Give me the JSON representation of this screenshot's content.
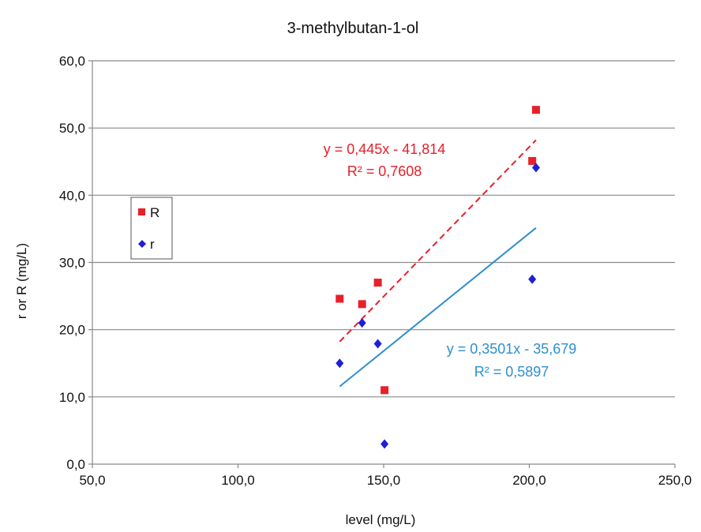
{
  "chart_data": {
    "type": "scatter",
    "title": "3-methylbutan-1-ol",
    "xlabel": "level (mg/L)",
    "ylabel": "r or R (mg/L)",
    "xlim": [
      50,
      250
    ],
    "ylim": [
      0,
      60
    ],
    "x_ticks": [
      50,
      100,
      150,
      200,
      250
    ],
    "y_ticks": [
      0,
      10,
      20,
      30,
      40,
      50,
      60
    ],
    "x_tick_labels": [
      "50,0",
      "100,0",
      "150,0",
      "200,0",
      "250,0"
    ],
    "y_tick_labels": [
      "0,0",
      "10,0",
      "20,0",
      "30,0",
      "40,0",
      "50,0",
      "60,0"
    ],
    "grid": "horizontal",
    "legend_position": "left",
    "series": [
      {
        "name": "R",
        "marker": "square",
        "color": "#e8202a",
        "points": [
          {
            "x": 134.9,
            "y": 24.6
          },
          {
            "x": 142.6,
            "y": 23.8
          },
          {
            "x": 148.0,
            "y": 27.0
          },
          {
            "x": 150.3,
            "y": 11.0
          },
          {
            "x": 201.0,
            "y": 45.1
          },
          {
            "x": 202.3,
            "y": 52.7
          }
        ],
        "trendline": {
          "slope": 0.445,
          "intercept": -41.814,
          "x_range": [
            134.9,
            202.3
          ],
          "style": "dashed",
          "color": "#e8202a",
          "equation": "y = 0,445x - 41,814",
          "r2": "R² = 0,7608"
        }
      },
      {
        "name": "r",
        "marker": "diamond",
        "color": "#1f1fd6",
        "points": [
          {
            "x": 134.9,
            "y": 15.0
          },
          {
            "x": 142.6,
            "y": 21.0
          },
          {
            "x": 148.0,
            "y": 17.9
          },
          {
            "x": 150.3,
            "y": 3.0
          },
          {
            "x": 201.0,
            "y": 27.5
          },
          {
            "x": 202.3,
            "y": 44.1
          }
        ],
        "trendline": {
          "slope": 0.3501,
          "intercept": -35.679,
          "x_range": [
            134.9,
            202.3
          ],
          "style": "solid",
          "color": "#2e8fd0",
          "equation": "y = 0,3501x - 35,679",
          "r2": "R² = 0,5897"
        }
      }
    ]
  }
}
